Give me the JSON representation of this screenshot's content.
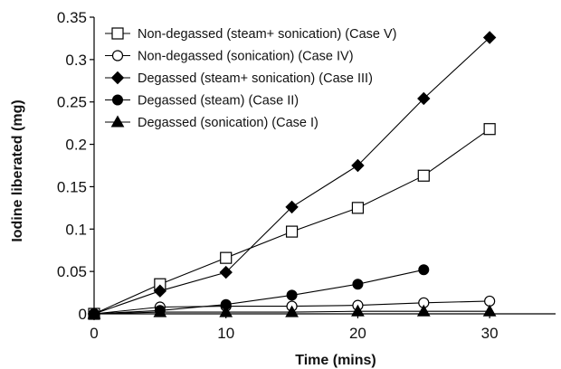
{
  "chart_data": {
    "type": "line",
    "title": "",
    "xlabel": "Time (mins)",
    "ylabel": "Iodine liberated (mg)",
    "xlim": [
      0,
      35
    ],
    "ylim": [
      0,
      0.35
    ],
    "xticks": [
      0,
      10,
      20,
      30
    ],
    "xtick_labels": [
      "0",
      "10",
      "20",
      "30"
    ],
    "yticks": [
      0,
      0.05,
      0.1,
      0.15,
      0.2,
      0.25,
      0.3,
      0.35
    ],
    "ytick_labels": [
      "0",
      "0.05",
      "0.1",
      "0.15",
      "0.2",
      "0.25",
      "0.3",
      "0.35"
    ],
    "grid": false,
    "legend_position": "top-left",
    "series": [
      {
        "name": "Non-degassed (steam+ sonication) (Case V)",
        "marker": "open-square",
        "color": "#000000",
        "x": [
          0,
          5,
          10,
          15,
          20,
          25,
          30
        ],
        "y": [
          0,
          0.035,
          0.066,
          0.097,
          0.125,
          0.163,
          0.218
        ]
      },
      {
        "name": "Non-degassed (sonication) (Case IV)",
        "marker": "open-circle",
        "color": "#000000",
        "x": [
          0,
          5,
          10,
          15,
          20,
          25,
          30
        ],
        "y": [
          0,
          0.008,
          0.009,
          0.009,
          0.01,
          0.013,
          0.015
        ]
      },
      {
        "name": "Degassed (steam+ sonication) (Case III)",
        "marker": "filled-diamond",
        "color": "#000000",
        "x": [
          0,
          5,
          10,
          15,
          20,
          25,
          30
        ],
        "y": [
          0,
          0.027,
          0.049,
          0.126,
          0.175,
          0.254,
          0.326
        ]
      },
      {
        "name": "Degassed (steam) (Case II)",
        "marker": "filled-circle",
        "color": "#000000",
        "x": [
          0,
          5,
          10,
          15,
          20,
          25
        ],
        "y": [
          0,
          0.004,
          0.011,
          0.022,
          0.035,
          0.052
        ]
      },
      {
        "name": "Degassed (sonication) (Case I)",
        "marker": "filled-triangle",
        "color": "#000000",
        "x": [
          0,
          5,
          10,
          15,
          20,
          25,
          30
        ],
        "y": [
          0,
          0.002,
          0.002,
          0.002,
          0.003,
          0.003,
          0.003
        ]
      }
    ]
  }
}
